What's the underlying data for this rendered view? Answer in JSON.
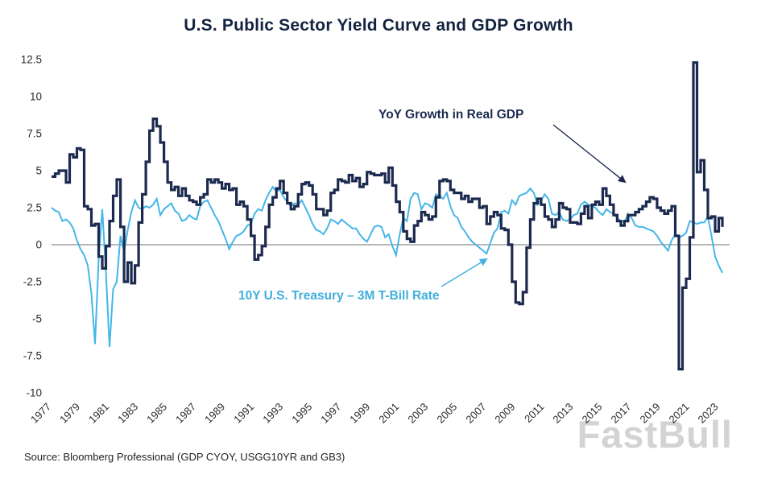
{
  "page": {
    "title": "U.S. Public Sector Yield Curve and GDP Growth",
    "source_note": "Source: Bloomberg Professional (GDP CYOY, USGG10YR and GB3)",
    "watermark": "FastBull"
  },
  "annotations": {
    "gdp_label": "YoY Growth in Real GDP",
    "spread_label": "10Y U.S. Treasury – 3M T-Bill Rate"
  },
  "colors": {
    "gdp_line": "#1b2a4e",
    "spread_line": "#45b6e8",
    "title": "#13233f",
    "axis_text": "#2b2b2b",
    "zero_line": "#8c8c8c",
    "watermark": "#c9c9c9"
  },
  "chart_data": {
    "type": "line",
    "title": "U.S. Public Sector Yield Curve and GDP Growth",
    "x_unit": "year (quarterly points)",
    "x_start": 1977,
    "x_step_years": 0.25,
    "xlim": [
      1977,
      2023.75
    ],
    "ylim": [
      -10,
      12.5
    ],
    "y_ticks": [
      12.5,
      10,
      7.5,
      5,
      2.5,
      0,
      -2.5,
      -5,
      -7.5,
      -10
    ],
    "x_tick_labels": [
      1977,
      1979,
      1981,
      1983,
      1985,
      1987,
      1989,
      1991,
      1993,
      1995,
      1997,
      1999,
      2001,
      2003,
      2005,
      2007,
      2009,
      2011,
      2013,
      2015,
      2017,
      2019,
      2021,
      2023
    ],
    "grid": false,
    "zero_line": true,
    "legend_position": "in-plot annotations with arrows",
    "series": [
      {
        "name": "YoY Growth in Real GDP",
        "color": "#1b2a4e",
        "style": "step",
        "values": [
          4.6,
          4.8,
          5.0,
          5.0,
          4.2,
          6.1,
          5.9,
          6.5,
          6.4,
          2.6,
          2.4,
          1.3,
          1.4,
          -0.8,
          -1.6,
          -0.1,
          1.6,
          3.3,
          4.4,
          1.2,
          -2.5,
          -1.2,
          -2.6,
          -1.4,
          1.5,
          3.4,
          5.6,
          7.7,
          8.5,
          8.0,
          6.9,
          5.6,
          4.2,
          3.7,
          3.9,
          3.3,
          3.8,
          3.3,
          3.0,
          2.9,
          2.7,
          3.2,
          3.4,
          4.4,
          4.2,
          4.4,
          4.2,
          3.8,
          4.1,
          3.7,
          3.8,
          2.7,
          2.9,
          2.6,
          1.7,
          0.6,
          -1.0,
          -0.7,
          -0.1,
          1.2,
          2.7,
          3.2,
          3.8,
          4.3,
          3.5,
          2.8,
          2.4,
          2.6,
          3.4,
          4.1,
          4.2,
          4.0,
          3.4,
          2.4,
          2.4,
          2.0,
          2.3,
          3.5,
          3.7,
          4.4,
          4.3,
          4.2,
          4.7,
          4.3,
          4.5,
          3.9,
          4.1,
          4.9,
          4.8,
          4.7,
          4.7,
          4.8,
          4.2,
          5.2,
          4.0,
          2.9,
          2.2,
          0.9,
          0.4,
          0.2,
          1.3,
          1.6,
          2.2,
          2.0,
          1.7,
          1.9,
          3.2,
          4.3,
          4.4,
          4.3,
          3.7,
          3.5,
          3.5,
          3.1,
          3.3,
          2.9,
          3.1,
          3.1,
          2.5,
          2.6,
          1.4,
          1.9,
          2.2,
          2.0,
          1.1,
          1.0,
          0.0,
          -2.5,
          -3.9,
          -4.0,
          -3.2,
          -0.2,
          1.7,
          2.8,
          3.1,
          2.7,
          1.9,
          1.7,
          1.2,
          1.7,
          2.8,
          2.5,
          2.4,
          1.5,
          1.5,
          1.4,
          2.1,
          2.6,
          1.8,
          2.7,
          2.9,
          2.7,
          3.8,
          3.3,
          2.7,
          2.0,
          1.6,
          1.3,
          1.6,
          2.0,
          2.0,
          2.2,
          2.4,
          2.6,
          2.9,
          3.2,
          3.1,
          2.5,
          2.3,
          2.1,
          2.3,
          2.6,
          0.6,
          -8.4,
          -2.9,
          -2.3,
          0.5,
          12.3,
          4.9,
          5.7,
          3.7,
          1.8,
          1.9,
          0.9,
          1.8,
          1.2
        ]
      },
      {
        "name": "10Y U.S. Treasury – 3M T-Bill Rate",
        "color": "#45b6e8",
        "style": "line",
        "values": [
          2.5,
          2.3,
          2.2,
          1.6,
          1.7,
          1.5,
          1.1,
          0.3,
          -0.3,
          -0.7,
          -1.4,
          -3.3,
          -6.7,
          -1.0,
          2.4,
          -1.8,
          -6.9,
          -3.0,
          -2.5,
          0.6,
          -0.5,
          1.0,
          2.2,
          3.0,
          2.5,
          2.4,
          2.6,
          2.5,
          2.7,
          3.1,
          2.0,
          2.4,
          2.6,
          2.8,
          2.3,
          2.1,
          1.6,
          1.7,
          2.0,
          1.8,
          1.7,
          2.6,
          2.9,
          3.0,
          2.5,
          2.0,
          1.6,
          1.0,
          0.4,
          -0.3,
          0.2,
          0.6,
          0.7,
          0.9,
          1.3,
          1.4,
          2.1,
          2.4,
          2.3,
          3.0,
          3.5,
          3.9,
          3.6,
          3.7,
          3.2,
          2.9,
          2.6,
          2.8,
          2.7,
          3.0,
          2.5,
          2.0,
          1.4,
          1.0,
          0.9,
          0.7,
          1.1,
          1.7,
          1.6,
          1.4,
          1.7,
          1.5,
          1.3,
          1.1,
          1.1,
          0.7,
          0.4,
          0.2,
          0.7,
          1.2,
          1.3,
          1.2,
          0.5,
          0.7,
          -0.1,
          -0.7,
          0.7,
          1.8,
          1.6,
          3.1,
          3.5,
          3.4,
          2.4,
          2.8,
          2.7,
          2.5,
          3.4,
          3.3,
          3.1,
          3.5,
          2.6,
          2.0,
          1.8,
          1.2,
          0.9,
          0.5,
          0.2,
          0.0,
          -0.2,
          -0.4,
          -0.6,
          0.1,
          0.8,
          1.1,
          2.2,
          2.3,
          2.1,
          3.0,
          2.7,
          3.3,
          3.4,
          3.5,
          3.8,
          3.5,
          2.7,
          3.0,
          3.4,
          3.1,
          2.1,
          2.0,
          2.2,
          1.7,
          1.6,
          1.7,
          2.0,
          2.1,
          2.7,
          2.9,
          2.7,
          2.6,
          2.5,
          2.2,
          2.0,
          2.4,
          2.2,
          2.1,
          1.8,
          1.6,
          1.5,
          2.1,
          1.8,
          1.3,
          1.2,
          1.2,
          1.1,
          1.0,
          0.9,
          0.6,
          0.2,
          -0.1,
          -0.4,
          0.3,
          0.7,
          0.5,
          0.6,
          0.8,
          1.6,
          1.5,
          1.4,
          1.5,
          1.5,
          1.9,
          0.6,
          -0.8,
          -1.4,
          -1.9
        ]
      }
    ]
  }
}
